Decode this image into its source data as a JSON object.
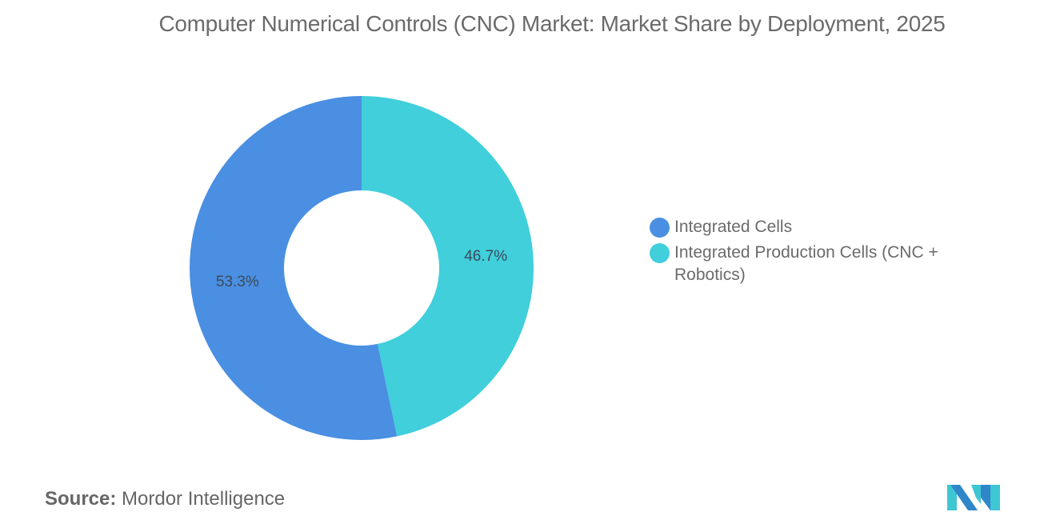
{
  "title": "Computer Numerical Controls (CNC) Market: Market Share by Deployment, 2025",
  "chart_data": {
    "type": "pie",
    "variant": "donut",
    "title": "Computer Numerical Controls (CNC) Market: Market Share by Deployment, 2025",
    "categories": [
      "Integrated Cells",
      "Integrated Production Cells (CNC + Robotics)"
    ],
    "values": [
      53.3,
      46.7
    ],
    "unit": "%",
    "labels": [
      "53.3%",
      "46.7%"
    ],
    "colors": [
      "#4a8fe2",
      "#40cfdb"
    ],
    "legend_position": "right",
    "start_angle": "12 o'clock",
    "direction": "clockwise from top: 46.7% first, then 53.3%"
  },
  "legend": {
    "items": [
      {
        "label": "Integrated Cells",
        "color": "#4a8fe2"
      },
      {
        "label": "Integrated Production Cells (CNC + Robotics)",
        "color": "#40cfdb"
      }
    ]
  },
  "source": {
    "key": "Source:",
    "value": "Mordor Intelligence"
  },
  "logo": {
    "name": "mordor-intelligence-logo",
    "colors": [
      "#2f86c9",
      "#3ec6d3"
    ]
  }
}
